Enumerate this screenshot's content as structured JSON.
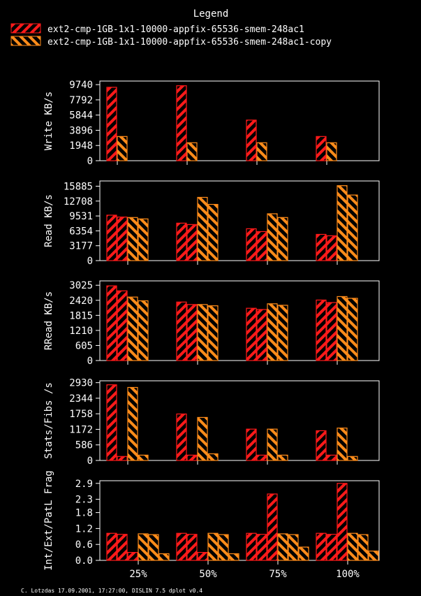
{
  "legend": {
    "title": "Legend",
    "entries": [
      {
        "label": "ext2-cmp-1GB-1x1-10000-appfix-65536-smem-248ac1",
        "color": "#ff1a1a",
        "hatch": "down"
      },
      {
        "label": "ext2-cmp-1GB-1x1-10000-appfix-65536-smem-248ac1-copy",
        "color": "#ff8c1a",
        "hatch": "up"
      }
    ]
  },
  "footer": "C. Lotzdas 17.09.2001, 17:27:00, DISLIN 7.5 dplot v0.4",
  "chart_data": [
    {
      "type": "bar",
      "ylabel": "Write KB/s",
      "categories": [
        "25%",
        "50%",
        "75%",
        "100%"
      ],
      "yticks": [
        0,
        1948,
        3896,
        5844,
        7792,
        9740
      ],
      "ylim": [
        0,
        10200
      ],
      "bar_colors": [
        "#ff1a1a",
        "#ff8c1a"
      ],
      "series": [
        {
          "values": [
            9400,
            9600,
            5200,
            3100
          ]
        },
        {
          "values": [
            3100,
            2300,
            2300,
            2300
          ]
        }
      ]
    },
    {
      "type": "bar",
      "ylabel": "Read KB/s",
      "categories": [
        "25%",
        "50%",
        "75%",
        "100%"
      ],
      "yticks": [
        0,
        3177,
        6354,
        9531,
        12708,
        15885
      ],
      "ylim": [
        0,
        17000
      ],
      "bar_colors": [
        "#ff1a1a",
        "#ff1a1a",
        "#ff8c1a",
        "#ff8c1a"
      ],
      "series": [
        {
          "values": [
            9700,
            8000,
            6800,
            5600
          ]
        },
        {
          "values": [
            9300,
            7700,
            6200,
            5300
          ]
        },
        {
          "values": [
            9200,
            13500,
            10000,
            16000
          ]
        },
        {
          "values": [
            8900,
            12000,
            9200,
            14000
          ]
        }
      ]
    },
    {
      "type": "bar",
      "ylabel": "RRead KB/s",
      "categories": [
        "25%",
        "50%",
        "75%",
        "100%"
      ],
      "yticks": [
        0,
        605,
        1210,
        1815,
        2420,
        3025
      ],
      "ylim": [
        0,
        3200
      ],
      "bar_colors": [
        "#ff1a1a",
        "#ff1a1a",
        "#ff8c1a",
        "#ff8c1a"
      ],
      "series": [
        {
          "values": [
            3000,
            2350,
            2100,
            2430
          ]
        },
        {
          "values": [
            2800,
            2250,
            2050,
            2330
          ]
        },
        {
          "values": [
            2550,
            2250,
            2280,
            2570
          ]
        },
        {
          "values": [
            2400,
            2200,
            2220,
            2500
          ]
        }
      ]
    },
    {
      "type": "bar",
      "ylabel": "Stats/Fibs /s",
      "categories": [
        "25%",
        "50%",
        "75%",
        "100%"
      ],
      "yticks": [
        0,
        586,
        1172,
        1758,
        2344,
        2930
      ],
      "ylim": [
        0,
        3000
      ],
      "bar_colors": [
        "#ff1a1a",
        "#ff1a1a",
        "#ff8c1a",
        "#ff8c1a"
      ],
      "series": [
        {
          "values": [
            2850,
            1750,
            1180,
            1120
          ]
        },
        {
          "values": [
            150,
            200,
            200,
            200
          ]
        },
        {
          "values": [
            2750,
            1620,
            1180,
            1220
          ]
        },
        {
          "values": [
            200,
            250,
            200,
            150
          ]
        }
      ]
    },
    {
      "type": "bar",
      "ylabel": "Int/Ext/PatL Frag",
      "categories": [
        "25%",
        "50%",
        "75%",
        "100%"
      ],
      "yticks": [
        0.0,
        0.6,
        1.2,
        1.8,
        2.3,
        2.9
      ],
      "ylim": [
        0,
        3.0
      ],
      "bar_colors": [
        "#ff1a1a",
        "#ff1a1a",
        "#ff1a1a",
        "#ff8c1a",
        "#ff8c1a",
        "#ff8c1a"
      ],
      "series": [
        {
          "values": [
            1.02,
            1.02,
            1.02,
            1.02
          ]
        },
        {
          "values": [
            0.98,
            0.98,
            0.98,
            0.98
          ]
        },
        {
          "values": [
            0.3,
            0.3,
            2.5,
            2.9
          ]
        },
        {
          "values": [
            1.0,
            1.02,
            1.0,
            1.02
          ]
        },
        {
          "values": [
            0.97,
            0.97,
            0.97,
            0.97
          ]
        },
        {
          "values": [
            0.25,
            0.25,
            0.5,
            0.35
          ]
        }
      ]
    }
  ]
}
